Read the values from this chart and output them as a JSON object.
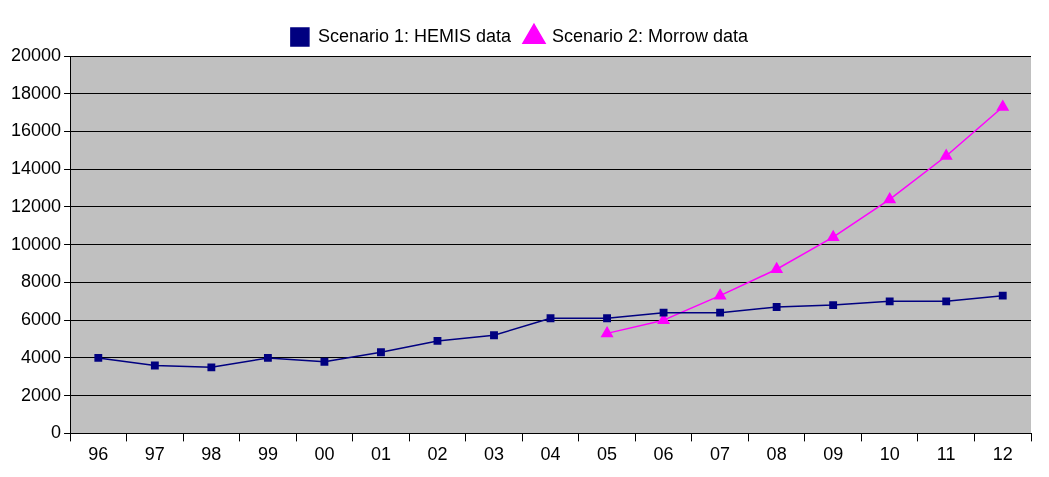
{
  "chart_data": {
    "type": "line",
    "categories": [
      "96",
      "97",
      "98",
      "99",
      "00",
      "01",
      "02",
      "03",
      "04",
      "05",
      "06",
      "07",
      "08",
      "09",
      "10",
      "11",
      "12"
    ],
    "series": [
      {
        "name": "Scenario 1: HEMIS data",
        "color": "#000080",
        "marker": "square",
        "values": [
          4000,
          3600,
          3500,
          4000,
          3800,
          4300,
          4900,
          5200,
          6100,
          6100,
          6400,
          6400,
          6700,
          6800,
          7000,
          7000,
          7300
        ]
      },
      {
        "name": "Scenario 2: Morrow data",
        "color": "#ff00ff",
        "marker": "triangle",
        "values": [
          null,
          null,
          null,
          null,
          null,
          null,
          null,
          null,
          null,
          5300,
          6000,
          7300,
          8700,
          10400,
          12400,
          14700,
          17300
        ]
      }
    ],
    "ylim": [
      0,
      20000
    ],
    "yticks": [
      0,
      2000,
      4000,
      6000,
      8000,
      10000,
      12000,
      14000,
      16000,
      18000,
      20000
    ],
    "grid": "y",
    "legend": "top"
  }
}
